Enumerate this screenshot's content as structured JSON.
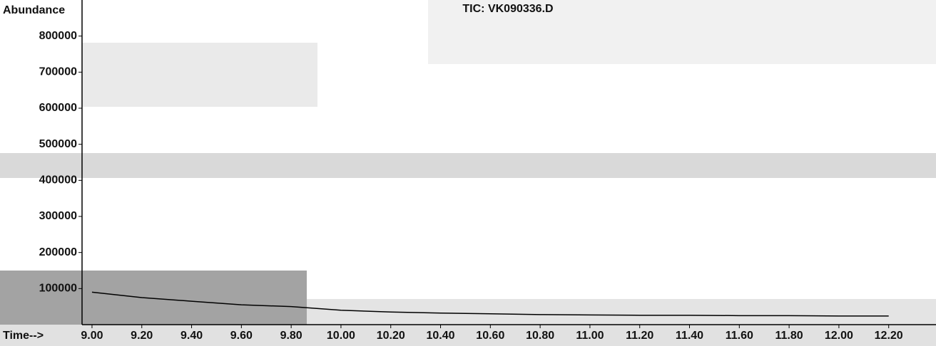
{
  "chart_data": {
    "type": "line",
    "title": "TIC: VK090336.D",
    "y_label": "Abundance",
    "x_label": "Time-->",
    "x": [
      9.0,
      9.2,
      9.4,
      9.6,
      9.8,
      10.0,
      10.2,
      10.4,
      10.6,
      10.8,
      11.0,
      11.2,
      11.4,
      11.6,
      11.8,
      12.0,
      12.2
    ],
    "series": [
      {
        "color": "#000000",
        "values": [
          90000,
          75000,
          65000,
          55000,
          50000,
          40000,
          35000,
          32000,
          30000,
          28000,
          27000,
          26000,
          26000,
          25000,
          25000,
          24000,
          24000
        ]
      }
    ],
    "xlim": [
      8.96,
      12.39
    ],
    "xticks": [
      {
        "value": 9.0,
        "label": "9.00"
      },
      {
        "value": 9.2,
        "label": "9.20"
      },
      {
        "value": 9.4,
        "label": "9.40"
      },
      {
        "value": 9.6,
        "label": "9.60"
      },
      {
        "value": 9.8,
        "label": "9.80"
      },
      {
        "value": 10.0,
        "label": "10.00"
      },
      {
        "value": 10.2,
        "label": "10.20"
      },
      {
        "value": 10.4,
        "label": "10.40"
      },
      {
        "value": 10.6,
        "label": "10.60"
      },
      {
        "value": 10.8,
        "label": "10.80"
      },
      {
        "value": 11.0,
        "label": "11.00"
      },
      {
        "value": 11.2,
        "label": "11.20"
      },
      {
        "value": 11.4,
        "label": "11.40"
      },
      {
        "value": 11.6,
        "label": "11.60"
      },
      {
        "value": 11.8,
        "label": "11.80"
      },
      {
        "value": 12.0,
        "label": "12.00"
      },
      {
        "value": 12.2,
        "label": "12.20"
      }
    ],
    "ylim": [
      0,
      900000
    ],
    "yticks": [
      100000,
      200000,
      300000,
      400000,
      500000,
      600000,
      700000,
      800000
    ]
  }
}
